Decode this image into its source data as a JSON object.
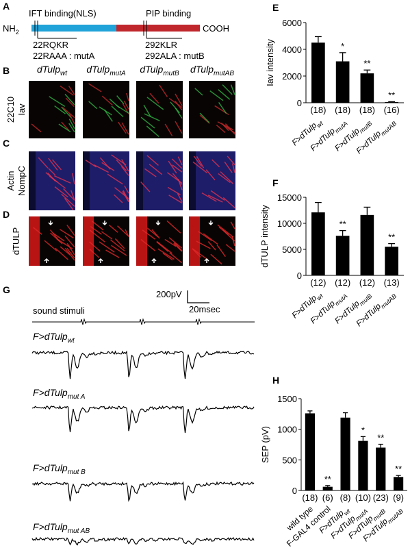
{
  "panel_labels": [
    "A",
    "B",
    "C",
    "D",
    "E",
    "F",
    "G",
    "H"
  ],
  "protein_diagram": {
    "n_terminus": {
      "text": "NH",
      "sub": "2"
    },
    "c_terminus": "COOH",
    "domain_1": "IFT binding(NLS)",
    "domain_2": "PIP binding",
    "site_1": [
      "22RQKR",
      "22RAAA : mutA"
    ],
    "site_2": [
      "292KLR",
      "292ALA : mutB"
    ]
  },
  "image_grid": {
    "columns": [
      {
        "text": "dTulp",
        "sub": "wt"
      },
      {
        "text": "dTulp",
        "sub": "mutA"
      },
      {
        "text": "dTulp",
        "sub": "mutB"
      },
      {
        "text": "dTulp",
        "sub": "mutAB"
      }
    ],
    "rows": [
      {
        "stains": [
          "22C10",
          "Iav"
        ]
      },
      {
        "stains": [
          "Actin",
          "NompC"
        ]
      },
      {
        "stains": [
          "dTULP"
        ]
      }
    ]
  },
  "recordings": {
    "scale_y": "200pV",
    "scale_x": "20msec",
    "stimulus": "sound stimuli",
    "traces": [
      {
        "text": "F>dTulp",
        "sub": "wt"
      },
      {
        "text": "F>dTulp",
        "sub": "mut A"
      },
      {
        "text": "F>dTulp",
        "sub": "mut B"
      },
      {
        "text": "F>dTulp",
        "sub": "mut AB"
      }
    ]
  },
  "chart_data": [
    {
      "type": "bar",
      "y_label": "Iav intensity",
      "color": "#000000",
      "categories": [
        "F>dTulp",
        "F>dTulp",
        "F>dTulp",
        "F>dTulp"
      ],
      "subscripts": [
        "wt",
        "mutA",
        "mutB",
        "mutAB"
      ],
      "values": [
        4500,
        3100,
        2200,
        50
      ],
      "errors": [
        450,
        650,
        250,
        30
      ],
      "n_labels": [
        "(18)",
        "(18)",
        "(18)",
        "(16)"
      ],
      "annotations": [
        null,
        "*",
        "**",
        "**"
      ],
      "ylim": [
        0,
        6000
      ],
      "yticks": [
        0,
        2000,
        4000,
        6000
      ]
    },
    {
      "type": "bar",
      "y_label": "dTULP intensity",
      "color": "#000000",
      "categories": [
        "F>dTulp",
        "F>dTulp",
        "F>dTulp",
        "F>dTulp"
      ],
      "subscripts": [
        "wt",
        "mutA",
        "mutB",
        "mutAB"
      ],
      "values": [
        12100,
        7600,
        11600,
        5500
      ],
      "errors": [
        1900,
        1000,
        1500,
        600
      ],
      "n_labels": [
        "(12)",
        "(12)",
        "(12)",
        "(13)"
      ],
      "annotations": [
        null,
        "**",
        null,
        "**"
      ],
      "ylim": [
        0,
        15000
      ],
      "yticks": [
        0,
        5000,
        10000,
        15000
      ]
    },
    {
      "type": "bar",
      "y_label": "SEP (pV)",
      "color": "#000000",
      "categories": [
        "wild type",
        "F-GAL4 control",
        "F>dTulp",
        "F>dTulp",
        "F>dTulp",
        "F>dTulp"
      ],
      "subscripts": [
        null,
        null,
        "wt",
        "mutA",
        "mutB",
        "mutAB"
      ],
      "values": [
        1260,
        60,
        1190,
        810,
        700,
        220
      ],
      "errors": [
        40,
        20,
        80,
        70,
        55,
        25
      ],
      "n_labels": [
        "(18)",
        "(6)",
        "(8)",
        "(10)",
        "(23)",
        "(9)"
      ],
      "annotations": [
        null,
        "**",
        null,
        "*",
        "**",
        "**"
      ],
      "ylim": [
        0,
        1500
      ],
      "yticks": [
        0,
        500,
        1000,
        1500
      ]
    }
  ]
}
